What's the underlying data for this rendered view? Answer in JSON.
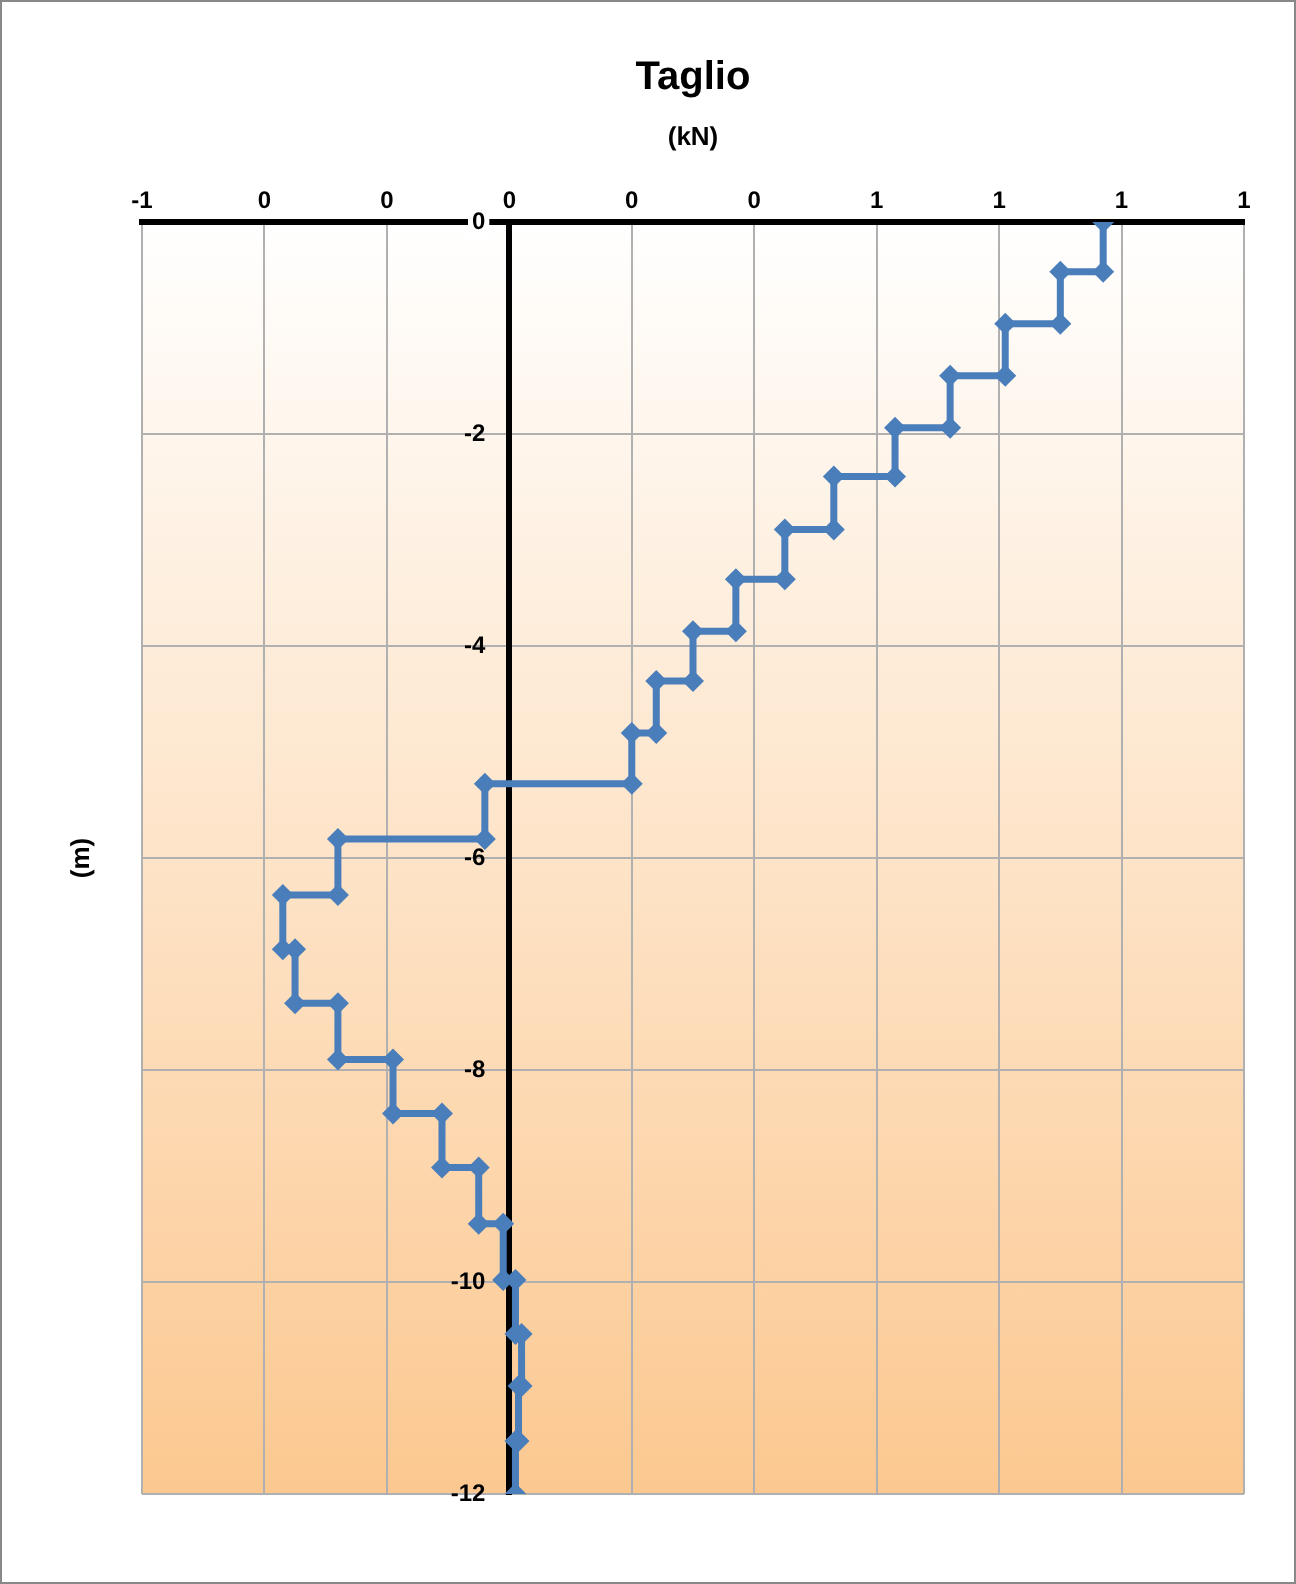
{
  "chart_data": {
    "type": "line",
    "title": "Taglio",
    "xlabel": "(kN)",
    "ylabel": "(m)",
    "marker": "diamond",
    "grid": true,
    "legend": false,
    "x": [
      0.97,
      0.97,
      0.9,
      0.9,
      0.81,
      0.81,
      0.72,
      0.72,
      0.63,
      0.63,
      0.53,
      0.53,
      0.45,
      0.45,
      0.37,
      0.37,
      0.3,
      0.3,
      0.24,
      0.24,
      0.2,
      0.2,
      -0.04,
      -0.04,
      -0.28,
      -0.28,
      -0.37,
      -0.37,
      -0.35,
      -0.35,
      -0.28,
      -0.28,
      -0.19,
      -0.19,
      -0.11,
      -0.11,
      -0.05,
      -0.05,
      -0.01,
      -0.01,
      0.01,
      0.01,
      0.02,
      0.02,
      0.015,
      0.015,
      0.01,
      0.01
    ],
    "series": [
      {
        "color": "#4a7ebb",
        "values": [
          0,
          -0.47,
          -0.47,
          -0.96,
          -0.96,
          -1.45,
          -1.45,
          -1.94,
          -1.94,
          -2.4,
          -2.4,
          -2.9,
          -2.9,
          -3.37,
          -3.37,
          -3.86,
          -3.86,
          -4.33,
          -4.33,
          -4.82,
          -4.82,
          -5.3,
          -5.3,
          -5.82,
          -5.82,
          -6.35,
          -6.35,
          -6.86,
          -6.86,
          -7.37,
          -7.37,
          -7.9,
          -7.9,
          -8.41,
          -8.41,
          -8.92,
          -8.92,
          -9.45,
          -9.45,
          -9.98,
          -9.98,
          -10.49,
          -10.49,
          -10.98,
          -10.98,
          -11.5,
          -11.5,
          -12
        ]
      }
    ],
    "xlim": [
      -0.6,
      1.2
    ],
    "xticks": [
      {
        "value": -0.6,
        "label": "-1"
      },
      {
        "value": -0.4,
        "label": "0"
      },
      {
        "value": -0.2,
        "label": "0"
      },
      {
        "value": 0,
        "label": "0"
      },
      {
        "value": 0.2,
        "label": "0"
      },
      {
        "value": 0.4,
        "label": "0"
      },
      {
        "value": 0.6,
        "label": "1"
      },
      {
        "value": 0.8,
        "label": "1"
      },
      {
        "value": 1.0,
        "label": "1"
      },
      {
        "value": 1.2,
        "label": "1"
      }
    ],
    "ylim": [
      -12,
      0
    ],
    "yticks": [
      0,
      -2,
      -4,
      -6,
      -8,
      -10,
      -12
    ]
  }
}
